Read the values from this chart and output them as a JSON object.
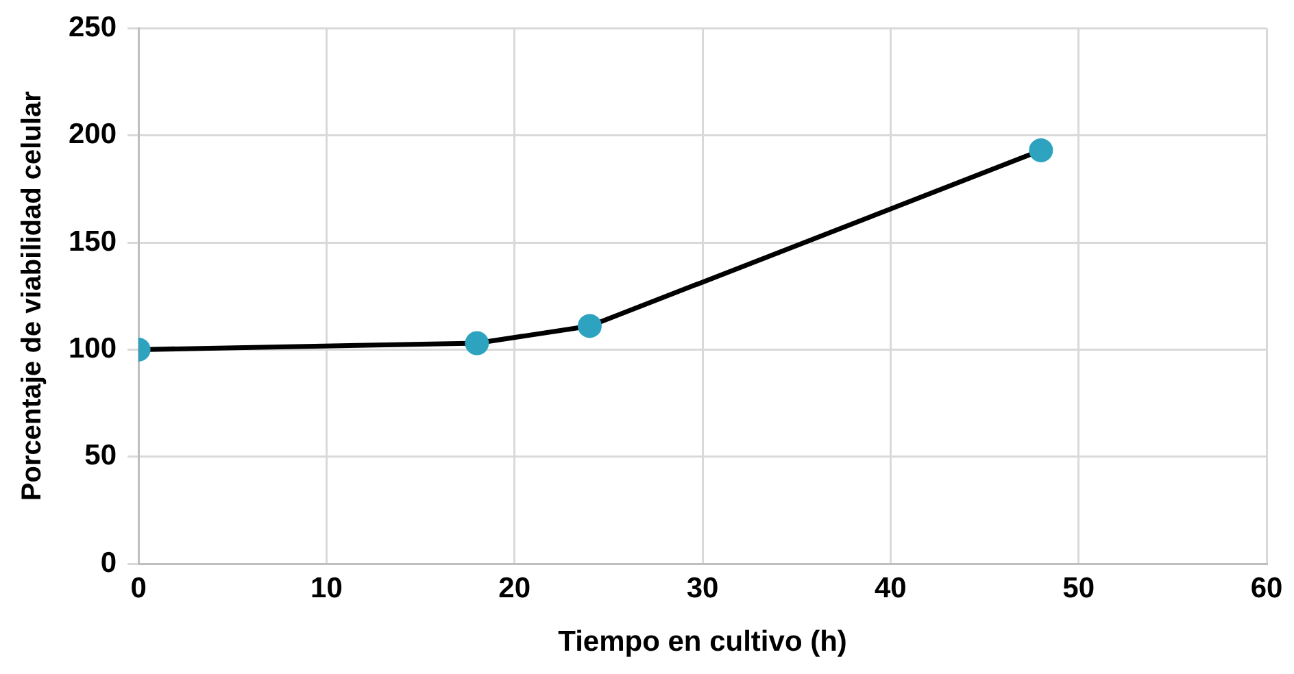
{
  "chart_data": {
    "type": "line",
    "xlabel": "Tiempo en cultivo (h)",
    "ylabel": "Porcentaje de viabilidad celular",
    "x": [
      0,
      18,
      24,
      48
    ],
    "series": [
      {
        "color": "#000000",
        "colors": [
          "#2ea3c0",
          "#2ea3c0",
          "#2ea3c0",
          "#2ea3c0"
        ],
        "values": [
          100,
          103,
          111,
          193
        ]
      }
    ],
    "xlim": [
      0,
      60
    ],
    "xticks": [
      0,
      10,
      20,
      30,
      40,
      50,
      60
    ],
    "ylim": [
      0,
      250
    ],
    "yticks": [
      0,
      50,
      100,
      150,
      200,
      250
    ],
    "grid": true,
    "marker": "circle",
    "line_style": "solid",
    "legend": false
  }
}
